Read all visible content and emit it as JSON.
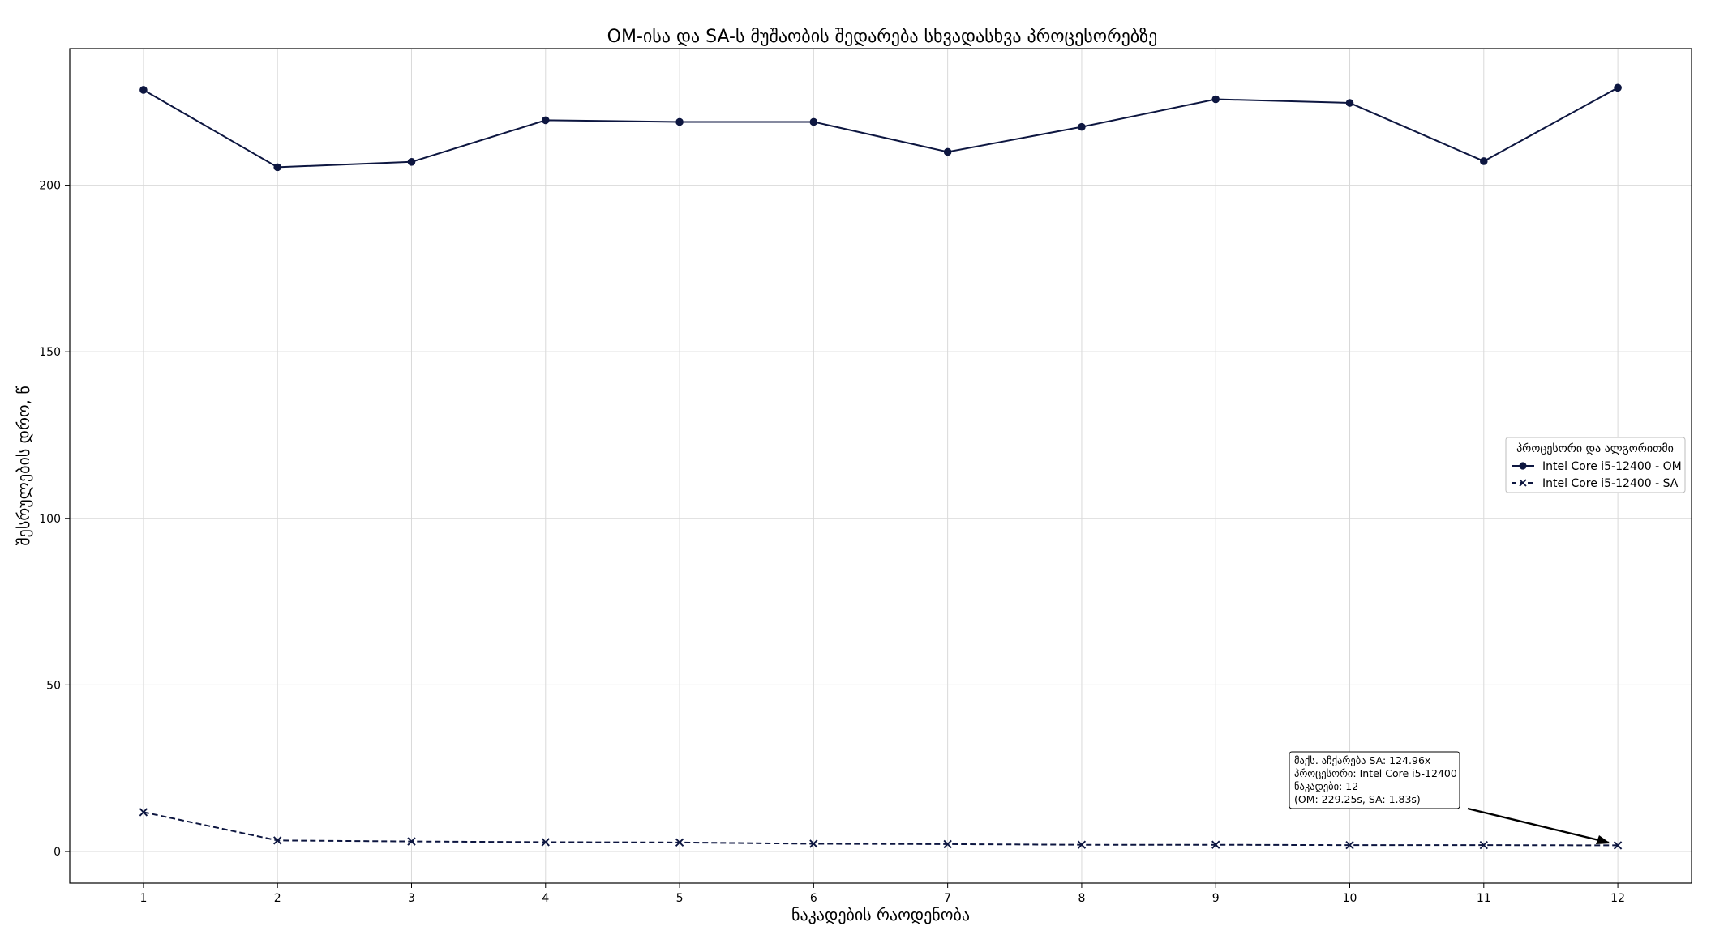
{
  "chart_data": {
    "type": "line",
    "title": "OM-ისა და SA-ს მუშაობის შედარება სხვადასხვა პროცესორებზე",
    "xlabel": "ნაკადების რაოდენობა",
    "ylabel": "შესრულების დრო, წ",
    "x": [
      1,
      2,
      3,
      4,
      5,
      6,
      7,
      8,
      9,
      10,
      11,
      12
    ],
    "x_ticks": [
      "1",
      "2",
      "3",
      "4",
      "5",
      "6",
      "7",
      "8",
      "9",
      "10",
      "11",
      "12"
    ],
    "y_ticks": [
      "0",
      "50",
      "100",
      "150",
      "200"
    ],
    "xlim": [
      0.45,
      12.55
    ],
    "ylim": [
      -9.5,
      241
    ],
    "grid": true,
    "legend": {
      "title": "პროცესორი და ალგორითმი",
      "placement": "center-right"
    },
    "colors": {
      "series": "#0d1640",
      "grid": "#d9d9d9",
      "frame": "#000000"
    },
    "series": [
      {
        "name": "Intel Core i5-12400 - OM",
        "marker": "circle",
        "linestyle": "solid",
        "values": [
          228.6,
          205.4,
          207.0,
          219.5,
          219.0,
          219.0,
          210.0,
          217.5,
          225.8,
          224.7,
          207.2,
          229.25
        ]
      },
      {
        "name": "Intel Core i5-12400 - SA",
        "marker": "x",
        "linestyle": "dashed",
        "values": [
          11.8,
          3.3,
          3.0,
          2.8,
          2.7,
          2.3,
          2.2,
          2.0,
          2.0,
          1.9,
          1.9,
          1.83
        ]
      }
    ],
    "annotation": {
      "lines": [
        "მაქს. აჩქარება SA: 124.96x",
        "პროცესორი: Intel Core i5-12400",
        "ნაკადები: 12",
        "(OM: 229.25s, SA: 1.83s)"
      ],
      "points_to": {
        "x": 12,
        "y": 1.83
      }
    }
  }
}
